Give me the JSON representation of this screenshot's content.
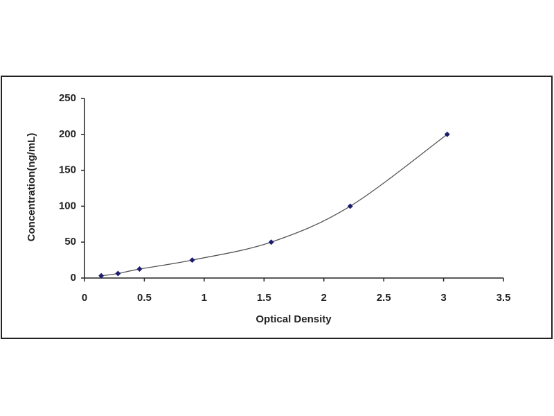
{
  "chart_data": {
    "type": "scatter",
    "x_label": "Optical Density",
    "y_label": "Concentration(ng/mL)",
    "x": [
      0.14,
      0.28,
      0.46,
      0.9,
      1.56,
      2.22,
      3.03
    ],
    "values": [
      3.12,
      6.25,
      12.5,
      25,
      50,
      100,
      200
    ],
    "color": "#1c1c6e",
    "line_color": "#555555",
    "smooth_line": true,
    "xlim": [
      0,
      3.5
    ],
    "xticks": [
      0,
      0.5,
      1,
      1.5,
      2,
      2.5,
      3,
      3.5
    ],
    "ylim": [
      0,
      250
    ],
    "yticks": [
      0,
      50,
      100,
      150,
      200,
      250
    ],
    "grid": false
  }
}
